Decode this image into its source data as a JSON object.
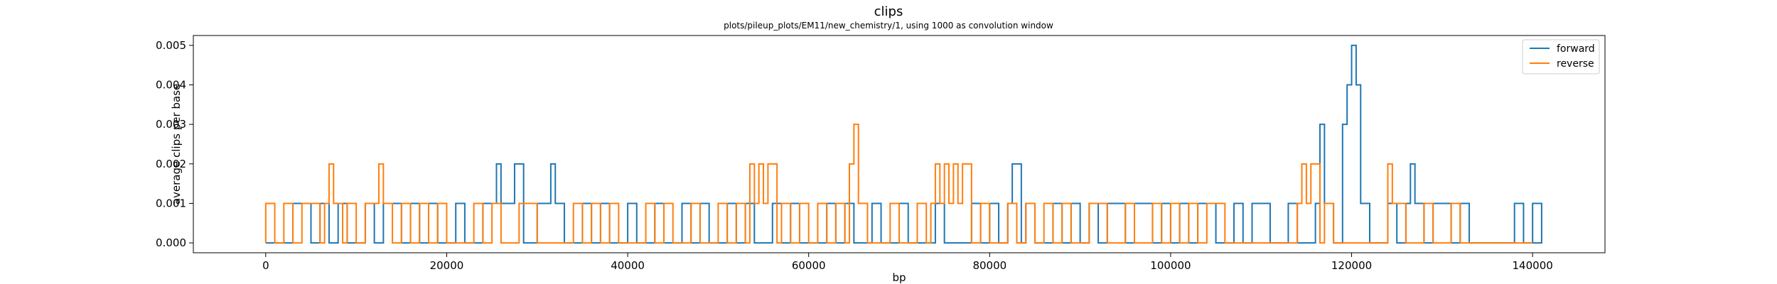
{
  "chart_data": {
    "type": "line",
    "title": "clips",
    "subtitle": "plots/pileup_plots/EM11/new_chemistry/1, using 1000 as convolution window",
    "xlabel": "bp",
    "ylabel": "average clips per base",
    "xlim": [
      -8000,
      148000
    ],
    "ylim": [
      -0.00025,
      0.00525
    ],
    "x_ticks": [
      0,
      20000,
      40000,
      60000,
      80000,
      100000,
      120000,
      140000
    ],
    "x_tick_labels": [
      "0",
      "20000",
      "40000",
      "60000",
      "80000",
      "100000",
      "120000",
      "140000"
    ],
    "y_ticks": [
      0.0,
      0.001,
      0.002,
      0.003,
      0.004,
      0.005
    ],
    "y_tick_labels": [
      "0.000",
      "0.001",
      "0.002",
      "0.003",
      "0.004",
      "0.005"
    ],
    "grid": false,
    "legend_position": "top-right",
    "step_width": 1000,
    "series": [
      {
        "name": "forward",
        "color": "#1f77b4",
        "nonzero_x": [
          3000,
          4000,
          6000,
          8000,
          11000,
          13000,
          14000,
          16000,
          18000,
          21000,
          24000,
          25000,
          25500,
          26000,
          27000,
          27500,
          30000,
          31000,
          31500,
          32000,
          35000,
          37000,
          40000,
          43000,
          46000,
          48000,
          51000,
          53000,
          56000,
          58000,
          62000,
          64000,
          67000,
          70000,
          74000,
          78000,
          80000,
          82000,
          82500,
          84000,
          87000,
          89000,
          91000,
          93000,
          94000,
          96000,
          97000,
          99000,
          101000,
          103000,
          104000,
          107000,
          109000,
          110000,
          113000,
          116000,
          116500,
          117000,
          119000,
          119500,
          120000,
          120500,
          121000,
          124000,
          126000,
          126500,
          127000,
          129000,
          130000,
          132000,
          138000,
          140000
        ],
        "nonzero_y": [
          0.001,
          0.001,
          0.001,
          0.001,
          0.001,
          0.001,
          0.001,
          0.001,
          0.001,
          0.001,
          0.001,
          0.001,
          0.002,
          0.001,
          0.001,
          0.002,
          0.001,
          0.001,
          0.002,
          0.001,
          0.001,
          0.001,
          0.001,
          0.001,
          0.001,
          0.001,
          0.001,
          0.001,
          0.001,
          0.001,
          0.001,
          0.001,
          0.001,
          0.001,
          0.001,
          0.001,
          0.001,
          0.001,
          0.002,
          0.001,
          0.001,
          0.001,
          0.001,
          0.001,
          0.001,
          0.001,
          0.001,
          0.001,
          0.001,
          0.001,
          0.001,
          0.001,
          0.001,
          0.001,
          0.001,
          0.001,
          0.003,
          0.001,
          0.003,
          0.004,
          0.005,
          0.004,
          0.001,
          0.001,
          0.001,
          0.002,
          0.001,
          0.001,
          0.001,
          0.001,
          0.001,
          0.001
        ]
      },
      {
        "name": "reverse",
        "color": "#ff7f0e",
        "nonzero_x": [
          0,
          2000,
          4000,
          5000,
          6500,
          7000,
          7500,
          9000,
          11000,
          12000,
          12500,
          13000,
          15000,
          17000,
          19000,
          23000,
          25000,
          28000,
          29000,
          34000,
          36000,
          38000,
          42000,
          44000,
          47000,
          50000,
          52000,
          53500,
          54000,
          54500,
          55000,
          55500,
          57000,
          59000,
          61000,
          63000,
          64500,
          65000,
          65500,
          69000,
          72000,
          73500,
          74000,
          74500,
          75000,
          75500,
          76000,
          76500,
          77000,
          79000,
          82000,
          84000,
          86000,
          88000,
          91000,
          92000,
          95000,
          98000,
          100000,
          102000,
          104000,
          105000,
          114000,
          114500,
          115000,
          115500,
          117000,
          124000,
          124500,
          125000,
          128000,
          131000
        ],
        "nonzero_y": [
          0.001,
          0.001,
          0.001,
          0.001,
          0.001,
          0.002,
          0.001,
          0.001,
          0.001,
          0.001,
          0.002,
          0.001,
          0.001,
          0.001,
          0.001,
          0.001,
          0.001,
          0.001,
          0.001,
          0.001,
          0.001,
          0.001,
          0.001,
          0.001,
          0.001,
          0.001,
          0.001,
          0.002,
          0.001,
          0.002,
          0.001,
          0.002,
          0.001,
          0.001,
          0.001,
          0.001,
          0.002,
          0.003,
          0.001,
          0.001,
          0.001,
          0.001,
          0.002,
          0.001,
          0.002,
          0.001,
          0.002,
          0.001,
          0.002,
          0.001,
          0.001,
          0.001,
          0.001,
          0.001,
          0.001,
          0.001,
          0.001,
          0.001,
          0.001,
          0.001,
          0.001,
          0.001,
          0.001,
          0.002,
          0.001,
          0.002,
          0.001,
          0.002,
          0.001,
          0.001,
          0.001,
          0.001
        ]
      }
    ]
  }
}
